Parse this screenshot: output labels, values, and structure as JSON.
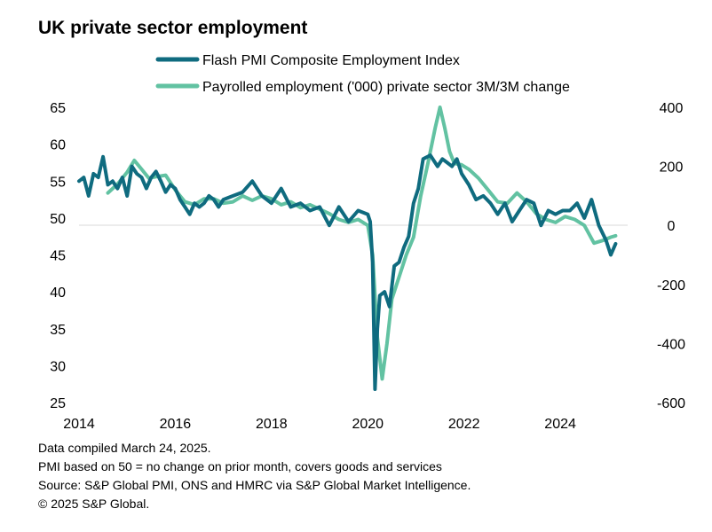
{
  "chart_data": {
    "type": "line",
    "title": "UK private sector employment",
    "xlabel": "",
    "ylabel_left": "",
    "ylabel_right": "",
    "xlim": [
      2014,
      2025.4
    ],
    "ylim_left": [
      25,
      65
    ],
    "ylim_right": [
      -600,
      400
    ],
    "x_ticks": [
      "2014",
      "2016",
      "2018",
      "2020",
      "2022",
      "2024"
    ],
    "x_tick_values": [
      2014,
      2016,
      2018,
      2020,
      2022,
      2024
    ],
    "y_ticks_left": [
      "65",
      "60",
      "55",
      "50",
      "45",
      "40",
      "35",
      "30",
      "25"
    ],
    "y_tick_values_left": [
      65,
      60,
      55,
      50,
      45,
      40,
      35,
      30,
      25
    ],
    "y_ticks_right": [
      "400",
      "200",
      "0",
      "-200",
      "-400",
      "-600"
    ],
    "y_tick_values_right": [
      400,
      200,
      0,
      -200,
      -400,
      -600
    ],
    "legend_position": "top",
    "series": [
      {
        "name": "Flash PMI Composite Employment Index",
        "color": "#0f6b7f",
        "axis": "left",
        "x": [
          2014.0,
          2014.1,
          2014.2,
          2014.3,
          2014.4,
          2014.5,
          2014.6,
          2014.7,
          2014.8,
          2014.9,
          2015.0,
          2015.1,
          2015.2,
          2015.3,
          2015.4,
          2015.5,
          2015.6,
          2015.7,
          2015.8,
          2015.9,
          2016.0,
          2016.1,
          2016.2,
          2016.3,
          2016.4,
          2016.5,
          2016.6,
          2016.7,
          2016.8,
          2016.9,
          2017.0,
          2017.2,
          2017.4,
          2017.6,
          2017.8,
          2018.0,
          2018.2,
          2018.4,
          2018.6,
          2018.8,
          2019.0,
          2019.2,
          2019.4,
          2019.6,
          2019.8,
          2020.0,
          2020.05,
          2020.1,
          2020.15,
          2020.2,
          2020.25,
          2020.35,
          2020.45,
          2020.55,
          2020.65,
          2020.75,
          2020.85,
          2020.95,
          2021.05,
          2021.15,
          2021.3,
          2021.45,
          2021.55,
          2021.65,
          2021.75,
          2021.85,
          2021.95,
          2022.1,
          2022.25,
          2022.4,
          2022.55,
          2022.7,
          2022.85,
          2023.0,
          2023.15,
          2023.3,
          2023.45,
          2023.6,
          2023.75,
          2023.9,
          2024.05,
          2024.2,
          2024.35,
          2024.5,
          2024.65,
          2024.8,
          2024.95,
          2025.05,
          2025.15
        ],
        "values": [
          55.0,
          55.5,
          53.0,
          56.0,
          55.5,
          58.3,
          54.5,
          55.0,
          54.0,
          55.5,
          53.0,
          57.0,
          56.0,
          55.5,
          54.0,
          55.5,
          56.3,
          55.0,
          53.5,
          54.5,
          54.0,
          52.5,
          51.5,
          50.5,
          52.0,
          51.5,
          52.0,
          53.0,
          52.5,
          51.5,
          52.5,
          53.0,
          53.5,
          55.0,
          53.0,
          52.0,
          54.0,
          51.5,
          52.0,
          51.0,
          51.5,
          49.0,
          51.5,
          49.5,
          51.0,
          50.5,
          49.5,
          44.0,
          26.8,
          35.0,
          39.5,
          40.0,
          38.0,
          43.5,
          44.0,
          46.0,
          47.5,
          52.0,
          54.0,
          58.0,
          58.5,
          57.0,
          58.0,
          57.5,
          57.0,
          58.0,
          56.0,
          54.5,
          52.5,
          53.0,
          52.0,
          50.5,
          52.0,
          49.5,
          51.0,
          52.5,
          52.0,
          49.0,
          51.0,
          50.5,
          51.0,
          51.0,
          52.0,
          50.0,
          52.5,
          49.0,
          47.0,
          45.0,
          46.5
        ],
        "annotation_points_note": "approximate readings from gridlines"
      },
      {
        "name": "Payrolled employment ('000) private sector 3M/3M change",
        "color": "#62c2a2",
        "axis": "right",
        "x": [
          2014.6,
          2014.8,
          2015.0,
          2015.15,
          2015.3,
          2015.45,
          2015.6,
          2015.8,
          2016.0,
          2016.2,
          2016.4,
          2016.6,
          2016.8,
          2017.0,
          2017.2,
          2017.4,
          2017.6,
          2017.8,
          2018.0,
          2018.2,
          2018.4,
          2018.6,
          2018.8,
          2019.0,
          2019.2,
          2019.4,
          2019.6,
          2019.8,
          2020.0,
          2020.1,
          2020.2,
          2020.3,
          2020.4,
          2020.5,
          2020.6,
          2020.7,
          2020.8,
          2020.95,
          2021.1,
          2021.25,
          2021.4,
          2021.5,
          2021.6,
          2021.7,
          2021.8,
          2021.95,
          2022.1,
          2022.3,
          2022.5,
          2022.7,
          2022.9,
          2023.1,
          2023.3,
          2023.5,
          2023.7,
          2023.9,
          2024.1,
          2024.3,
          2024.5,
          2024.7,
          2024.9,
          2025.05,
          2025.15
        ],
        "values": [
          110,
          140,
          180,
          220,
          190,
          160,
          165,
          170,
          120,
          80,
          70,
          90,
          90,
          75,
          80,
          100,
          85,
          100,
          90,
          70,
          80,
          60,
          70,
          55,
          40,
          20,
          10,
          20,
          0,
          -100,
          -380,
          -520,
          -400,
          -250,
          -200,
          -150,
          -100,
          -40,
          100,
          210,
          330,
          400,
          330,
          250,
          210,
          205,
          190,
          160,
          120,
          80,
          75,
          110,
          80,
          40,
          20,
          10,
          30,
          20,
          0,
          -60,
          -50,
          -40,
          -35
        ]
      }
    ],
    "notes": [
      "Data compiled March 24, 2025.",
      "PMI based on 50 = no change on prior month, covers goods and services",
      "Source: S&P Global PMI, ONS and HMRC via S&P Global Market Intelligence.",
      "© 2025 S&P Global."
    ]
  }
}
